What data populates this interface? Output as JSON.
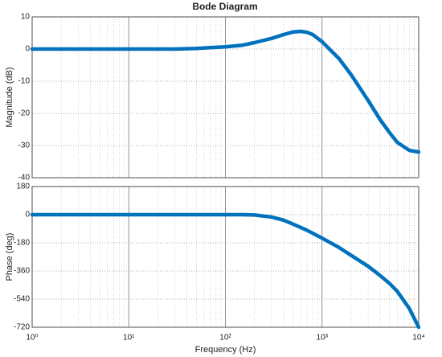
{
  "title": "Bode Diagram",
  "chart_data": [
    {
      "type": "line",
      "ylabel": "Magnitude (dB)",
      "log_x": true,
      "grid": true,
      "xlim": [
        1,
        10000
      ],
      "xticks": [
        1,
        10,
        100,
        1000,
        10000
      ],
      "ylim": [
        -40,
        10
      ],
      "yticks": [
        -40,
        -30,
        -20,
        -10,
        0,
        10
      ],
      "x": [
        1,
        10,
        30,
        50,
        100,
        150,
        200,
        300,
        400,
        500,
        600,
        700,
        800,
        1000,
        1500,
        2000,
        3000,
        4000,
        5000,
        6000,
        8000,
        10000
      ],
      "series": [
        {
          "name": "Magnitude",
          "color": "#0072bd",
          "values": [
            0,
            0,
            0,
            0.2,
            0.7,
            1.2,
            2,
            3.3,
            4.5,
            5.3,
            5.5,
            5.2,
            4.5,
            2.3,
            -3,
            -8,
            -16,
            -22,
            -26,
            -29,
            -31.5,
            -32
          ]
        }
      ]
    },
    {
      "type": "line",
      "ylabel": "Phase (deg)",
      "xlabel": "Frequency  (Hz)",
      "log_x": true,
      "grid": true,
      "xlim": [
        1,
        10000
      ],
      "xticks": [
        {
          "value": 1,
          "label": "10⁰"
        },
        {
          "value": 10,
          "label": "10¹"
        },
        {
          "value": 100,
          "label": "10²"
        },
        {
          "value": 1000,
          "label": "10³"
        },
        {
          "value": 10000,
          "label": "10⁴"
        }
      ],
      "ylim": [
        -720,
        180
      ],
      "yticks": [
        -720,
        -540,
        -360,
        -180,
        0,
        180
      ],
      "x": [
        1,
        100,
        150,
        200,
        300,
        400,
        500,
        700,
        1000,
        1500,
        2000,
        3000,
        4000,
        5000,
        6000,
        8000,
        10000
      ],
      "series": [
        {
          "name": "Phase",
          "color": "#0072bd",
          "values": [
            0,
            0,
            0,
            -2,
            -15,
            -35,
            -60,
            -100,
            -150,
            -210,
            -260,
            -330,
            -390,
            -440,
            -490,
            -600,
            -720
          ]
        }
      ]
    }
  ]
}
